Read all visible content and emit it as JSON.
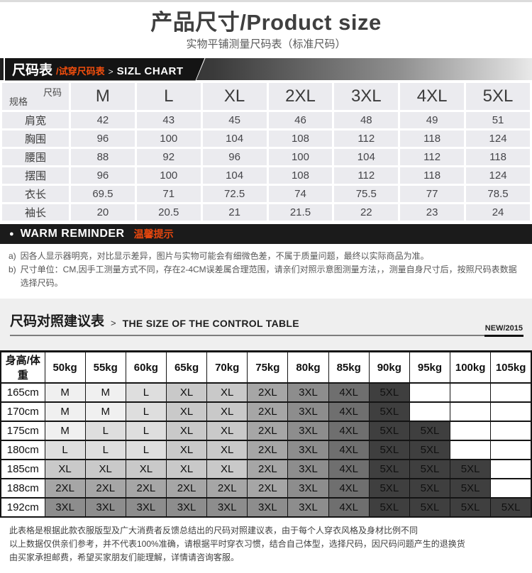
{
  "header": {
    "title": "产品尺寸/Product size",
    "subtitle": "实物平铺测量尺码表（标准尺码）"
  },
  "ribbon": {
    "label_main": "尺码表",
    "label_sub": "/试穿尺码表",
    "separator": ">",
    "label_en": "SIZL CHART"
  },
  "size_table": {
    "corner_top": "尺码",
    "corner_bottom": "规格",
    "columns": [
      "M",
      "L",
      "XL",
      "2XL",
      "3XL",
      "4XL",
      "5XL"
    ],
    "rows": [
      {
        "label": "肩宽",
        "values": [
          "42",
          "43",
          "45",
          "46",
          "48",
          "49",
          "51"
        ]
      },
      {
        "label": "胸围",
        "values": [
          "96",
          "100",
          "104",
          "108",
          "112",
          "118",
          "124"
        ]
      },
      {
        "label": "腰围",
        "values": [
          "88",
          "92",
          "96",
          "100",
          "104",
          "112",
          "118"
        ]
      },
      {
        "label": "摆围",
        "values": [
          "96",
          "100",
          "104",
          "108",
          "112",
          "118",
          "124"
        ]
      },
      {
        "label": "衣长",
        "values": [
          "69.5",
          "71",
          "72.5",
          "74",
          "75.5",
          "77",
          "78.5"
        ]
      },
      {
        "label": "袖长",
        "values": [
          "20",
          "20.5",
          "21",
          "21.5",
          "22",
          "23",
          "24"
        ]
      }
    ]
  },
  "reminder": {
    "bullet": "●",
    "title_en": "WARM REMINDER",
    "title_cn": "温馨提示",
    "notes": [
      {
        "marker": "a)",
        "text": "因各人显示器明亮，对比显示差异，图片与实物可能会有细微色差，不属于质量问题，最终以实际商品为准。"
      },
      {
        "marker": "b)",
        "text": "尺寸单位：CM,因手工测量方式不同，存在2-4CM误差属合理范围，请亲们对照示意图测量方法，，测量自身尺寸后，按照尺码表数据选择尺码。"
      }
    ]
  },
  "suggestion": {
    "title_cn": "尺码对照建议表",
    "separator": ">",
    "title_en": "THE SIZE OF THE CONTROL TABLE",
    "badge": "NEW/2015"
  },
  "match_table": {
    "corner": "身高/体重",
    "columns": [
      "50kg",
      "55kg",
      "60kg",
      "65kg",
      "70kg",
      "75kg",
      "80kg",
      "85kg",
      "90kg",
      "95kg",
      "100kg",
      "105kg"
    ],
    "rows": [
      {
        "label": "165cm",
        "values": [
          "M",
          "M",
          "L",
          "XL",
          "XL",
          "2XL",
          "3XL",
          "4XL",
          "5XL",
          "",
          "",
          ""
        ]
      },
      {
        "label": "170cm",
        "values": [
          "M",
          "M",
          "L",
          "XL",
          "XL",
          "2XL",
          "3XL",
          "4XL",
          "5XL",
          "",
          "",
          ""
        ]
      },
      {
        "label": "175cm",
        "values": [
          "M",
          "L",
          "L",
          "XL",
          "XL",
          "2XL",
          "3XL",
          "4XL",
          "5XL",
          "5XL",
          "",
          ""
        ]
      },
      {
        "label": "180cm",
        "values": [
          "L",
          "L",
          "L",
          "XL",
          "XL",
          "2XL",
          "3XL",
          "4XL",
          "5XL",
          "5XL",
          "",
          ""
        ]
      },
      {
        "label": "185cm",
        "values": [
          "XL",
          "XL",
          "XL",
          "XL",
          "XL",
          "2XL",
          "3XL",
          "4XL",
          "5XL",
          "5XL",
          "5XL",
          ""
        ]
      },
      {
        "label": "188cm",
        "values": [
          "2XL",
          "2XL",
          "2XL",
          "2XL",
          "2XL",
          "2XL",
          "3XL",
          "4XL",
          "5XL",
          "5XL",
          "5XL",
          ""
        ]
      },
      {
        "label": "192cm",
        "values": [
          "3XL",
          "3XL",
          "3XL",
          "3XL",
          "3XL",
          "3XL",
          "3XL",
          "4XL",
          "5XL",
          "5XL",
          "5XL",
          "5XL"
        ]
      }
    ]
  },
  "footer": {
    "lines": [
      "此表格是根据此款衣服版型及广大消费者反馈总结出的尺码对照建议表，由于每个人穿衣风格及身材比例不同",
      "以上数据仅供亲们参考，并不代表100%准确，请根据平时穿衣习惯，结合自己体型，选择尺码，因尺码问题产生的退换货",
      "由买家承担邮费，希望买家朋友们能理解，详情请咨询客服。"
    ]
  },
  "colors": {
    "accent_orange": "#f24e0d",
    "bar_black": "#1b1b1b",
    "cell_light": "#ebebef",
    "size_shades": {
      "M": "#f0f0f0",
      "L": "#dedede",
      "XL": "#c9c9c9",
      "2XL": "#a6a6a6",
      "3XL": "#8d8d8d",
      "4XL": "#6f6f6f",
      "5XL": "#3f3f3f",
      "": "#ffffff"
    }
  }
}
